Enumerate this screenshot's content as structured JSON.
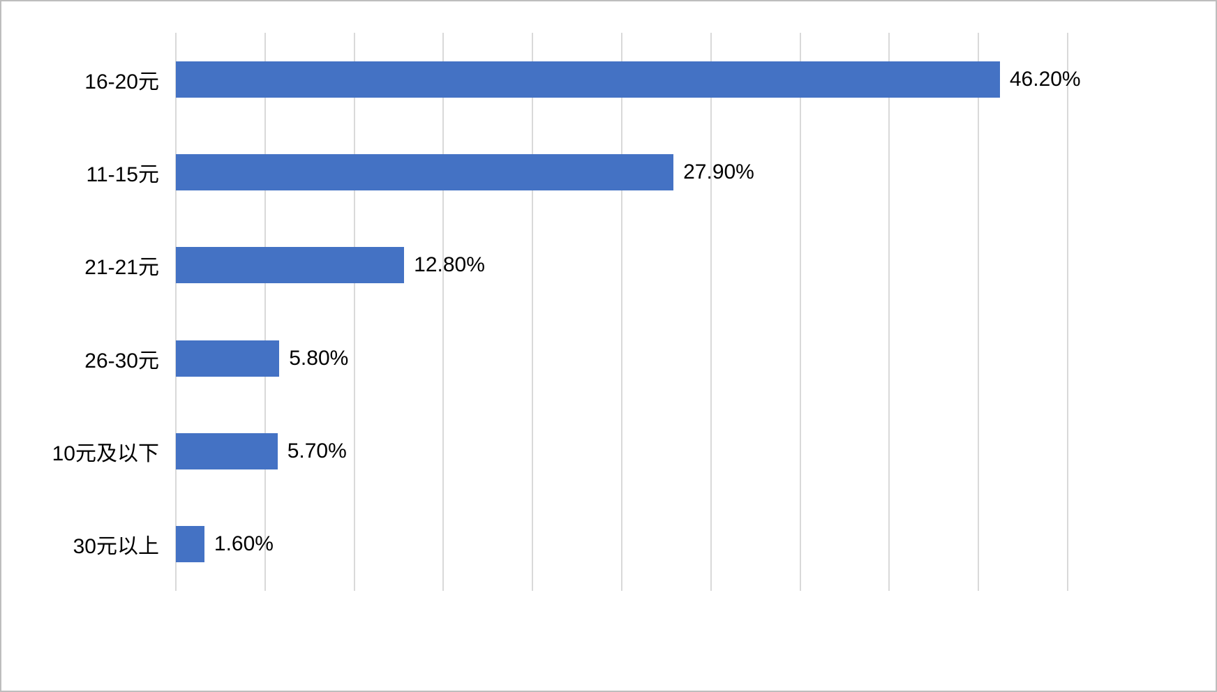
{
  "chart_data": {
    "type": "bar",
    "orientation": "horizontal",
    "title": "",
    "xlabel": "",
    "ylabel": "",
    "categories": [
      "16-20元",
      "11-15元",
      "21-21元",
      "26-30元",
      "10元及以下",
      "30元以上"
    ],
    "values": [
      46.2,
      27.9,
      12.8,
      5.8,
      5.7,
      1.6
    ],
    "value_labels": [
      "46.20%",
      "27.90%",
      "12.80%",
      "5.80%",
      "5.70%",
      "1.60%"
    ],
    "xlim": [
      0,
      50
    ],
    "gridline_interval": 5,
    "grid": "vertical",
    "legend": "none",
    "bar_color": "#4472c4",
    "gridline_color": "#d9d9d9",
    "text_color": "#000000",
    "background": "#ffffff"
  }
}
